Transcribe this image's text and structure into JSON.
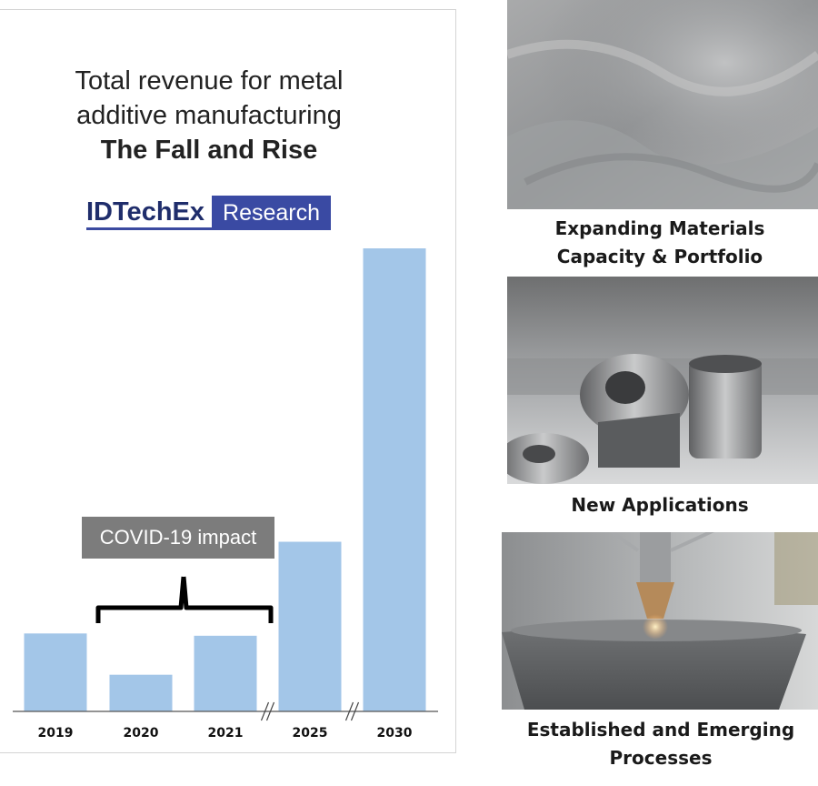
{
  "chart_data": {
    "type": "bar",
    "title_lines": [
      "Total revenue for metal",
      "additive manufacturing"
    ],
    "subtitle": "The Fall and Rise",
    "categories": [
      "2019",
      "2020",
      "2021",
      "2025",
      "2030"
    ],
    "values": [
      17,
      8,
      16.5,
      37,
      101
    ],
    "ylim": [
      0,
      101
    ],
    "bar_color": "#a3c6e8",
    "grid": false,
    "axis_breaks_after": [
      "2021",
      "2025"
    ],
    "annotation": {
      "text": "COVID-19 impact",
      "spans": [
        "2019",
        "2021"
      ]
    }
  },
  "logo": {
    "brand": "IDTechEx",
    "tag": "Research",
    "brand_color": "#1f2d6b",
    "tag_bg": "#3a4aa3"
  },
  "panels": [
    {
      "caption_lines": [
        "Expanding Materials",
        "Capacity & Portfolio"
      ],
      "image": "metal-powder-photo"
    },
    {
      "caption_lines": [
        "New Applications"
      ],
      "image": "printed-metal-parts-photo"
    },
    {
      "caption_lines": [
        "Established and Emerging",
        "Processes"
      ],
      "image": "laser-deposition-nozzle-photo"
    }
  ]
}
